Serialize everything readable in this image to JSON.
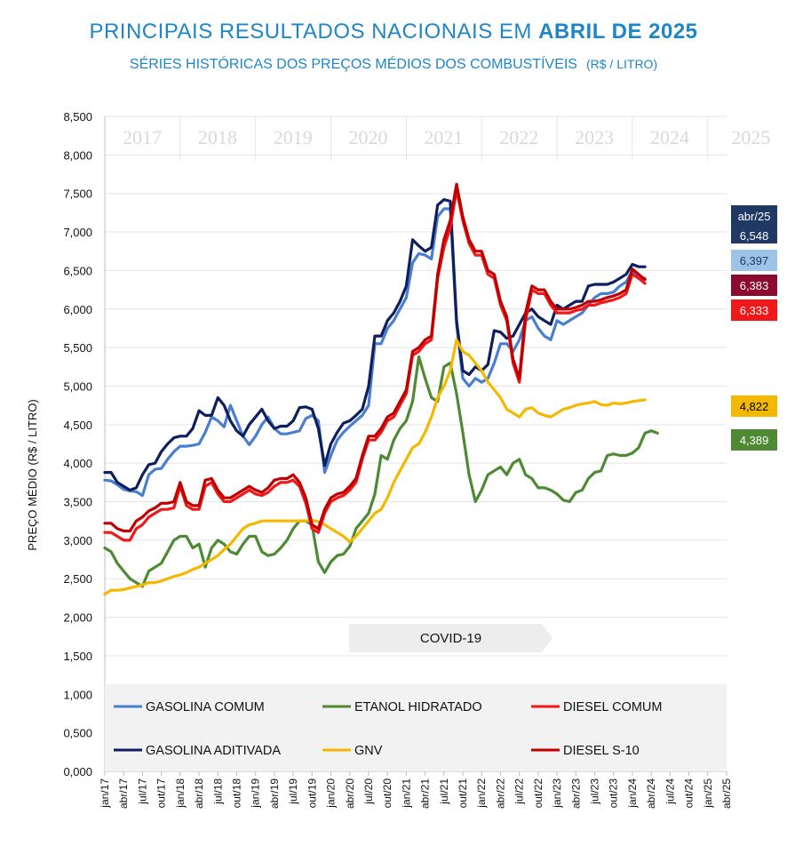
{
  "header": {
    "title_main": "PRINCIPAIS RESULTADOS NACIONAIS EM ",
    "title_bold": "ABRIL DE 2025",
    "subtitle": "SÉRIES HISTÓRICAS DOS PREÇOS MÉDIOS DOS COMBUSTÍVEIS",
    "subtitle_unit": "(R$ / LITRO)"
  },
  "chart_data": {
    "type": "line",
    "ylabel": "PREÇO MÉDIO (R$ / LITRO)",
    "ylim": [
      0,
      8.5
    ],
    "ytick_labels": [
      "0,000",
      "0,500",
      "1,000",
      "1,500",
      "2,000",
      "2,500",
      "3,000",
      "3,500",
      "4,000",
      "4,500",
      "5,000",
      "5,500",
      "6,000",
      "6,500",
      "7,000",
      "7,500",
      "8,000",
      "8,500"
    ],
    "x_tick_labels": [
      "jan/17",
      "abr/17",
      "jul/17",
      "out/17",
      "jan/18",
      "abr/18",
      "jul/18",
      "out/18",
      "jan/19",
      "abr/19",
      "jul/19",
      "out/19",
      "jan/20",
      "abr/20",
      "jul/20",
      "out/20",
      "jan/21",
      "abr/21",
      "jul/21",
      "out/21",
      "jan/22",
      "abr/22",
      "jul/22",
      "out/22",
      "jan/23",
      "abr/23",
      "jul/23",
      "out/23",
      "jan/24",
      "abr/24",
      "jul/24",
      "out/24",
      "jan/25",
      "abr/25"
    ],
    "years": [
      "2017",
      "2018",
      "2019",
      "2020",
      "2021",
      "2022",
      "2023",
      "2024",
      "2025"
    ],
    "grid": true,
    "legend_position": "bottom",
    "annotation": "COVID-19",
    "latest_label": "abr/25",
    "series": [
      {
        "name": "GASOLINA COMUM",
        "color": "#4a7fd0",
        "end_value": "6,397",
        "end_color": "#9dc3e6",
        "end_text_color": "#1f3864",
        "values": [
          3.78,
          3.77,
          3.72,
          3.66,
          3.64,
          3.63,
          3.58,
          3.85,
          3.92,
          3.93,
          4.05,
          4.15,
          4.22,
          4.22,
          4.23,
          4.25,
          4.4,
          4.6,
          4.55,
          4.47,
          4.75,
          4.55,
          4.35,
          4.24,
          4.35,
          4.5,
          4.6,
          4.45,
          4.38,
          4.38,
          4.4,
          4.42,
          4.58,
          4.62,
          4.55,
          3.88,
          4.1,
          4.3,
          4.4,
          4.48,
          4.55,
          4.62,
          4.75,
          5.55,
          5.55,
          5.75,
          5.85,
          6.0,
          6.15,
          6.6,
          6.72,
          6.7,
          6.65,
          7.2,
          7.3,
          7.3,
          5.8,
          5.1,
          5.0,
          5.1,
          5.05,
          5.1,
          5.3,
          5.55,
          5.55,
          5.45,
          5.6,
          5.85,
          5.9,
          5.75,
          5.65,
          5.6,
          5.85,
          5.8,
          5.85,
          5.9,
          5.95,
          6.05,
          6.15,
          6.2,
          6.2,
          6.22,
          6.3,
          6.35,
          6.5,
          6.4,
          6.4
        ]
      },
      {
        "name": "GASOLINA ADITIVADA",
        "color": "#0d1f5c",
        "end_value": "6,548",
        "end_color": "#1f3864",
        "end_text_color": "#ffffff",
        "values": [
          3.88,
          3.88,
          3.75,
          3.7,
          3.65,
          3.68,
          3.85,
          3.98,
          4.0,
          4.15,
          4.25,
          4.33,
          4.35,
          4.35,
          4.45,
          4.68,
          4.62,
          4.62,
          4.85,
          4.75,
          4.55,
          4.42,
          4.35,
          4.5,
          4.6,
          4.7,
          4.55,
          4.45,
          4.48,
          4.48,
          4.55,
          4.72,
          4.73,
          4.7,
          4.45,
          3.97,
          4.25,
          4.4,
          4.52,
          4.55,
          4.62,
          4.7,
          5.0,
          5.65,
          5.65,
          5.85,
          5.95,
          6.1,
          6.3,
          6.9,
          6.82,
          6.75,
          6.8,
          7.35,
          7.42,
          7.4,
          5.85,
          5.2,
          5.15,
          5.25,
          5.2,
          5.28,
          5.72,
          5.7,
          5.62,
          5.65,
          5.8,
          5.95,
          6.0,
          5.9,
          5.85,
          5.8,
          6.05,
          6.0,
          6.05,
          6.1,
          6.1,
          6.3,
          6.32,
          6.32,
          6.32,
          6.35,
          6.4,
          6.45,
          6.58,
          6.55,
          6.548
        ]
      },
      {
        "name": "ETANOL HIDRATADO",
        "color": "#4e8a33",
        "end_value": "4,389",
        "end_color": "#4e8a33",
        "end_text_color": "#ffffff",
        "values": [
          2.9,
          2.85,
          2.7,
          2.6,
          2.5,
          2.45,
          2.4,
          2.6,
          2.65,
          2.7,
          2.85,
          3.0,
          3.05,
          3.05,
          2.9,
          2.95,
          2.65,
          2.9,
          3.0,
          2.95,
          2.85,
          2.82,
          2.95,
          3.05,
          3.05,
          2.85,
          2.8,
          2.82,
          2.9,
          3.0,
          3.15,
          3.25,
          3.25,
          3.2,
          2.72,
          2.58,
          2.72,
          2.8,
          2.82,
          2.92,
          3.15,
          3.25,
          3.35,
          3.6,
          4.1,
          4.05,
          4.3,
          4.45,
          4.55,
          4.8,
          5.38,
          5.1,
          4.85,
          4.8,
          5.25,
          5.3,
          4.9,
          4.4,
          3.85,
          3.5,
          3.65,
          3.85,
          3.9,
          3.95,
          3.85,
          4.0,
          4.05,
          3.85,
          3.8,
          3.68,
          3.68,
          3.65,
          3.6,
          3.52,
          3.5,
          3.62,
          3.65,
          3.8,
          3.88,
          3.9,
          4.1,
          4.12,
          4.1,
          4.1,
          4.13,
          4.2,
          4.389,
          4.42,
          4.389
        ]
      },
      {
        "name": "GNV",
        "color": "#f5b800",
        "end_value": "4,822",
        "end_color": "#f5b800",
        "end_text_color": "#000000",
        "values": [
          2.3,
          2.35,
          2.35,
          2.36,
          2.38,
          2.4,
          2.42,
          2.45,
          2.45,
          2.47,
          2.5,
          2.53,
          2.55,
          2.58,
          2.62,
          2.65,
          2.7,
          2.75,
          2.8,
          2.88,
          2.95,
          3.05,
          3.15,
          3.2,
          3.22,
          3.25,
          3.25,
          3.25,
          3.25,
          3.25,
          3.25,
          3.25,
          3.25,
          3.26,
          3.24,
          3.2,
          3.15,
          3.1,
          3.05,
          2.98,
          3.05,
          3.15,
          3.25,
          3.35,
          3.4,
          3.55,
          3.75,
          3.9,
          4.05,
          4.2,
          4.25,
          4.4,
          4.6,
          4.85,
          5.0,
          5.2,
          5.6,
          5.45,
          5.4,
          5.3,
          5.2,
          5.05,
          4.95,
          4.85,
          4.7,
          4.65,
          4.6,
          4.7,
          4.72,
          4.65,
          4.62,
          4.6,
          4.65,
          4.7,
          4.72,
          4.75,
          4.77,
          4.78,
          4.8,
          4.76,
          4.75,
          4.78,
          4.77,
          4.78,
          4.8,
          4.81,
          4.822
        ]
      },
      {
        "name": "DIESEL COMUM",
        "color": "#f01818",
        "end_value": "6,333",
        "end_color": "#f01818",
        "end_text_color": "#ffffff",
        "values": [
          3.1,
          3.1,
          3.05,
          3.0,
          3.0,
          3.15,
          3.2,
          3.3,
          3.35,
          3.4,
          3.4,
          3.42,
          3.7,
          3.45,
          3.4,
          3.4,
          3.7,
          3.75,
          3.6,
          3.5,
          3.5,
          3.55,
          3.6,
          3.65,
          3.6,
          3.58,
          3.62,
          3.7,
          3.75,
          3.75,
          3.78,
          3.7,
          3.48,
          3.15,
          3.1,
          3.35,
          3.5,
          3.55,
          3.58,
          3.65,
          3.75,
          4.05,
          4.3,
          4.3,
          4.4,
          4.55,
          4.6,
          4.75,
          4.9,
          5.4,
          5.45,
          5.55,
          5.6,
          6.4,
          6.8,
          7.05,
          7.55,
          7.15,
          6.85,
          6.7,
          6.7,
          6.45,
          6.4,
          6.05,
          5.85,
          5.3,
          5.05,
          5.85,
          6.25,
          6.2,
          6.2,
          6.05,
          5.95,
          5.95,
          5.95,
          5.98,
          6.0,
          6.05,
          6.05,
          6.08,
          6.1,
          6.12,
          6.15,
          6.2,
          6.45,
          6.4,
          6.333
        ]
      },
      {
        "name": "DIESEL S-10",
        "color": "#c00000",
        "end_value": "6,383",
        "end_color": "#8b0a2e",
        "end_text_color": "#ffffff",
        "values": [
          3.22,
          3.22,
          3.15,
          3.12,
          3.12,
          3.25,
          3.3,
          3.38,
          3.42,
          3.48,
          3.48,
          3.5,
          3.75,
          3.5,
          3.45,
          3.45,
          3.78,
          3.8,
          3.65,
          3.55,
          3.55,
          3.6,
          3.65,
          3.7,
          3.65,
          3.62,
          3.68,
          3.78,
          3.8,
          3.8,
          3.85,
          3.75,
          3.55,
          3.2,
          3.15,
          3.4,
          3.55,
          3.6,
          3.62,
          3.7,
          3.8,
          4.1,
          4.35,
          4.35,
          4.45,
          4.6,
          4.65,
          4.8,
          4.95,
          5.45,
          5.5,
          5.6,
          5.65,
          6.45,
          6.9,
          7.15,
          7.62,
          7.2,
          6.9,
          6.75,
          6.75,
          6.5,
          6.45,
          6.1,
          5.9,
          5.35,
          5.1,
          5.95,
          6.3,
          6.25,
          6.25,
          6.1,
          6.0,
          6.0,
          6.0,
          6.02,
          6.05,
          6.1,
          6.1,
          6.12,
          6.15,
          6.17,
          6.2,
          6.25,
          6.52,
          6.45,
          6.383
        ]
      }
    ]
  }
}
